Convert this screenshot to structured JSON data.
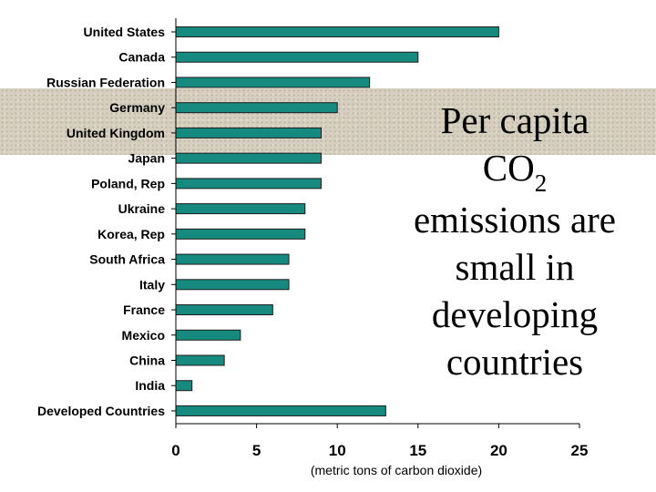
{
  "slide": {
    "title_line1": "Per capita",
    "title_co": "CO",
    "title_sub": "2",
    "title_rest": "emissions are small in developing countries"
  },
  "chart_data": {
    "type": "bar",
    "orientation": "horizontal",
    "categories": [
      "United States",
      "Canada",
      "Russian Federation",
      "Germany",
      "United Kingdom",
      "Japan",
      "Poland, Rep",
      "Ukraine",
      "Korea, Rep",
      "South Africa",
      "Italy",
      "France",
      "Mexico",
      "China",
      "India",
      "Developed Countries"
    ],
    "values": [
      20,
      15,
      12,
      10,
      9,
      9,
      9,
      8,
      8,
      7,
      7,
      6,
      4,
      3,
      1,
      13
    ],
    "xlim": [
      0,
      25
    ],
    "xticks": [
      "0",
      "5",
      "10",
      "15",
      "20",
      "25"
    ],
    "xlabel": "(metric tons of carbon dioxide)",
    "ylabel": "",
    "title": "",
    "bar_color": "#168a7e",
    "grid": false
  }
}
